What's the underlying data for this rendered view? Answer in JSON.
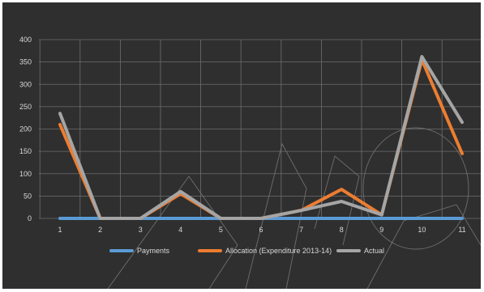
{
  "chart_data": {
    "type": "line",
    "title": "",
    "xlabel": "",
    "ylabel": "",
    "x": [
      1,
      2,
      3,
      4,
      5,
      6,
      7,
      8,
      9,
      10,
      11
    ],
    "ylim": [
      0,
      400
    ],
    "yticks": [
      0,
      50,
      100,
      150,
      200,
      250,
      300,
      350,
      400
    ],
    "grid": true,
    "legend_position": "bottom",
    "series": [
      {
        "name": "Payments",
        "color": "#5b9bd5",
        "values": [
          0,
          0,
          0,
          0,
          0,
          0,
          0,
          0,
          0,
          0,
          0
        ]
      },
      {
        "name": "Allocation (Expenditure 2013-14)",
        "color": "#ed7d31",
        "values": [
          210,
          0,
          0,
          55,
          0,
          0,
          18,
          65,
          8,
          355,
          145
        ]
      },
      {
        "name": "Actual",
        "color": "#a5a5a5",
        "values": [
          235,
          0,
          0,
          60,
          0,
          0,
          18,
          38,
          8,
          362,
          215
        ]
      }
    ]
  },
  "colors": {
    "background": "#2f2f2f",
    "grid": "#6e6e6e",
    "text": "#d9d9d9"
  }
}
